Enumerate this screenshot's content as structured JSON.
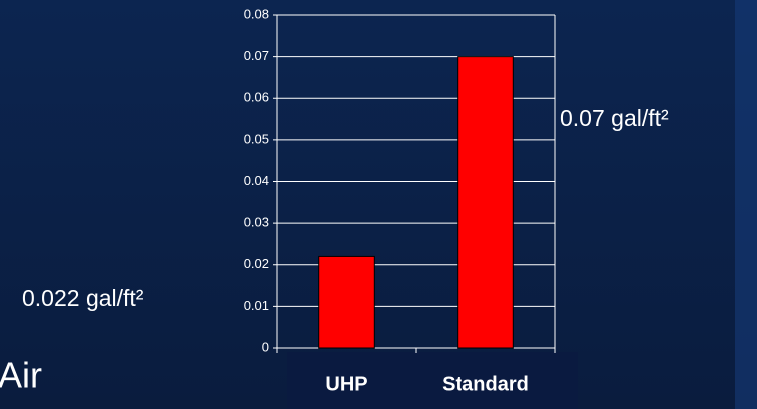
{
  "chart_data": {
    "type": "bar",
    "categories": [
      "UHP",
      "Standard"
    ],
    "values": [
      0.022,
      0.07
    ],
    "value_labels": [
      "0.022 gal/ft²",
      "0.07 gal/ft²"
    ],
    "color": "#ff0000",
    "ylim": [
      0,
      0.08
    ],
    "yticks": [
      0,
      0.01,
      0.02,
      0.03,
      0.04,
      0.05,
      0.06,
      0.07,
      0.08
    ],
    "grid": true,
    "annotations": [
      "Air"
    ]
  }
}
